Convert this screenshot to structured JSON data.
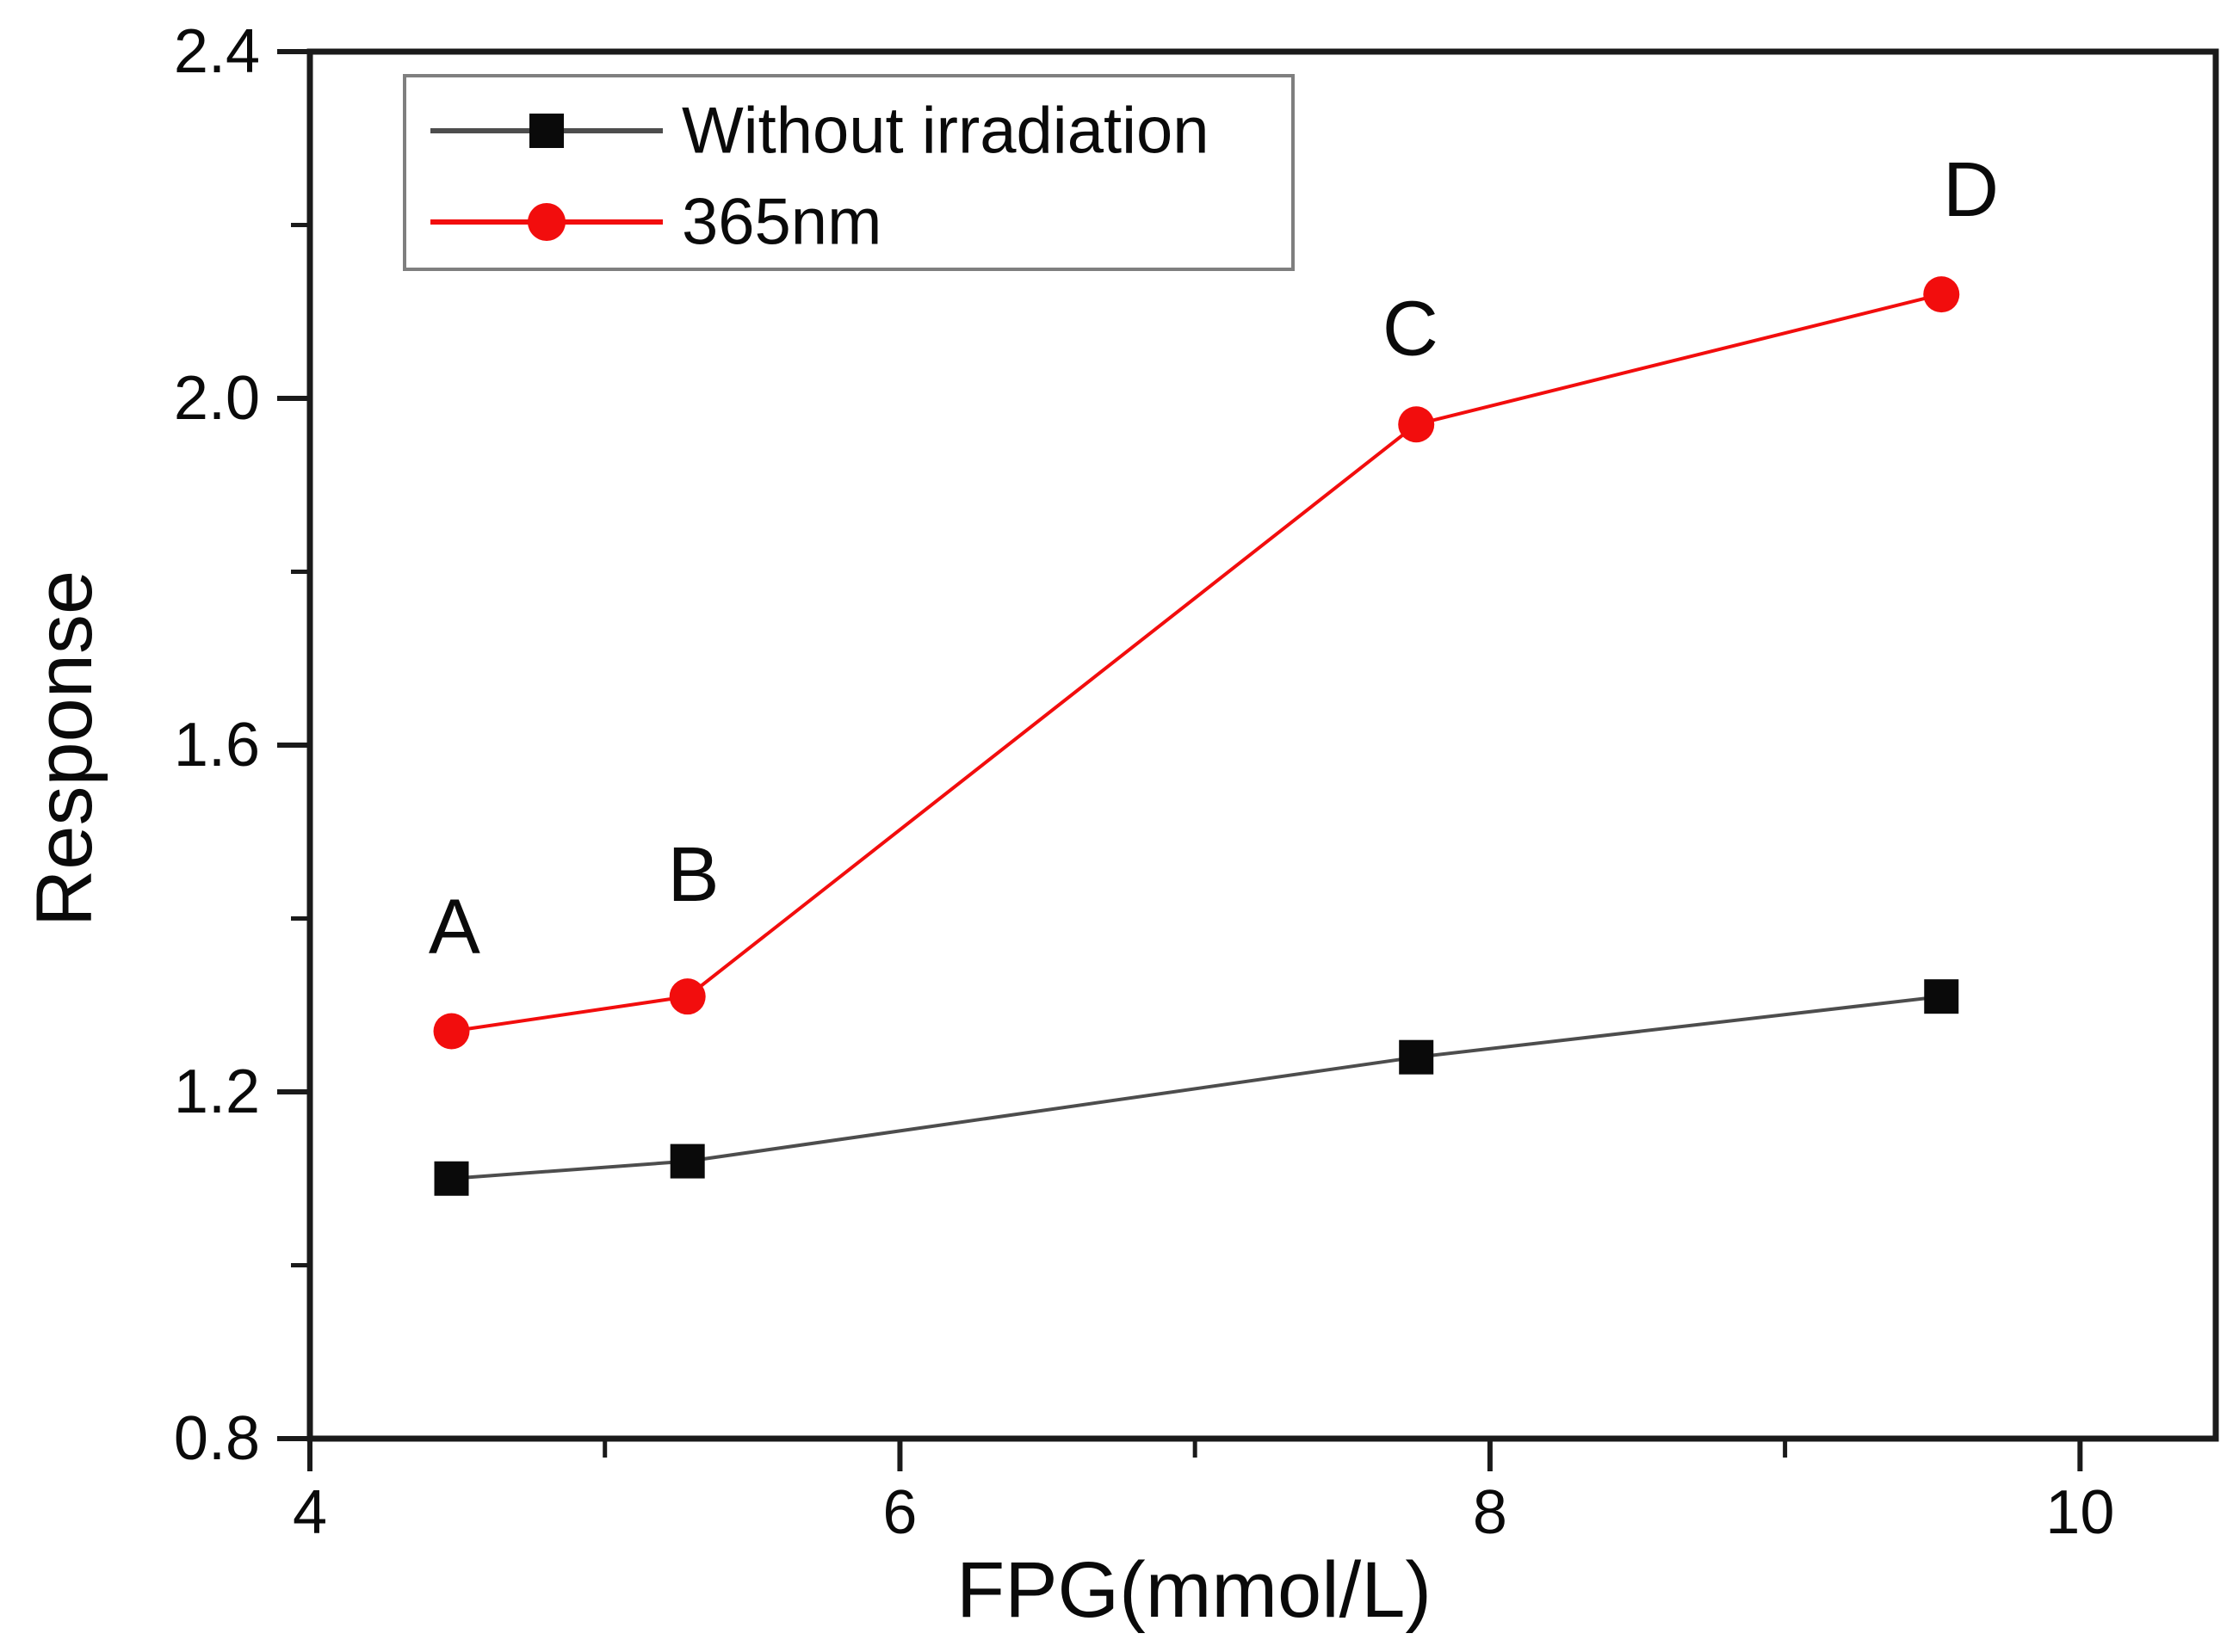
{
  "figure": {
    "background": "#ffffff",
    "frame_color": "#1a1a1a"
  },
  "colors": {
    "series_black_marker": "#0a0a0a",
    "series_black_line": "#4d4d4d",
    "series_red": "#f20d0d",
    "legend_border": "#7f7f7f"
  },
  "chart_data": {
    "type": "line",
    "title": "",
    "xlabel": "FPG(mmol/L)",
    "ylabel": "Response",
    "xlim": [
      4,
      10.46
    ],
    "ylim": [
      0.8,
      2.4
    ],
    "grid": false,
    "legend_position": "top-left",
    "x_major_ticks": [
      4,
      6,
      8,
      10
    ],
    "x_minor_ticks": [
      5,
      7,
      9
    ],
    "y_major_ticks": [
      0.8,
      1.2,
      1.6,
      2.0,
      2.4
    ],
    "y_minor_ticks": [
      1.0,
      1.4,
      1.8,
      2.2
    ],
    "x_tick_labels": [
      "4",
      "6",
      "8",
      "10"
    ],
    "y_tick_labels": [
      "0.8",
      "1.2",
      "1.6",
      "2.0",
      "2.4"
    ],
    "x": [
      4.48,
      5.28,
      7.75,
      9.53
    ],
    "series": [
      {
        "name": "Without irradiation",
        "marker": "square",
        "marker_color": "#0a0a0a",
        "line_color": "#4d4d4d",
        "values": [
          1.1,
          1.12,
          1.24,
          1.31
        ]
      },
      {
        "name": "365nm",
        "marker": "circle",
        "marker_color": "#f20d0d",
        "line_color": "#f20d0d",
        "values": [
          1.27,
          1.31,
          1.97,
          2.12
        ]
      }
    ],
    "point_labels": [
      {
        "text": "A",
        "x": 4.49,
        "y": 1.39
      },
      {
        "text": "B",
        "x": 5.3,
        "y": 1.45
      },
      {
        "text": "C",
        "x": 7.73,
        "y": 2.08
      },
      {
        "text": "D",
        "x": 9.63,
        "y": 2.24
      }
    ]
  }
}
